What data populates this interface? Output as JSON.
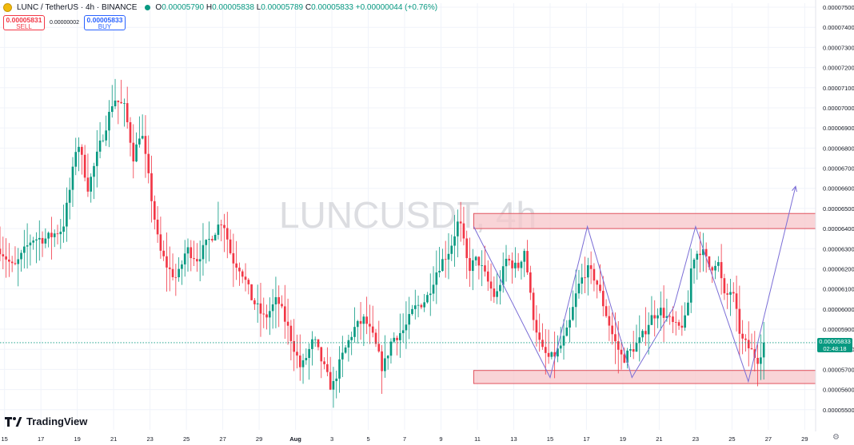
{
  "header": {
    "symbol": "LUNC / TetherUS · 4h · BINANCE",
    "open_k": "O",
    "open": "0.00005790",
    "high_k": "H",
    "high": "0.00005838",
    "low_k": "L",
    "low": "0.00005789",
    "close_k": "C",
    "close": "0.00005833",
    "change": "+0.00000044 (+0.76%)",
    "icon": "lunc-coin-icon"
  },
  "trade": {
    "sell_price": "0.00005831",
    "sell_label": "SELL",
    "spread": "0.00000002",
    "buy_price": "0.00005833",
    "buy_label": "BUY"
  },
  "watermark": "LUNCUSDT, 4h",
  "brand": "TradingView",
  "last_price": {
    "value": "0.00005833",
    "countdown": "02:48:18"
  },
  "colors": {
    "up": "#089981",
    "down": "#f23645",
    "zone_fill": "#f7c5c9",
    "zone_stroke": "#e0525d",
    "pattern": "#7b6ed6"
  },
  "chart_data": {
    "type": "candlestick",
    "y_range": [
      5.4e-05,
      7.52e-05
    ],
    "y_ticks": [
      "0.00007500",
      "0.00007400",
      "0.00007300",
      "0.00007200",
      "0.00007100",
      "0.00007000",
      "0.00006900",
      "0.00006800",
      "0.00006700",
      "0.00006600",
      "0.00006500",
      "0.00006400",
      "0.00006300",
      "0.00006200",
      "0.00006100",
      "0.00006000",
      "0.00005900",
      "0.00005800",
      "0.00005700",
      "0.00005600",
      "0.00005500"
    ],
    "x_range_days": [
      14.75,
      29.5
    ],
    "x_ticks": [
      {
        "d": 15,
        "l": "15"
      },
      {
        "d": 17,
        "l": "17"
      },
      {
        "d": 19,
        "l": "19"
      },
      {
        "d": 21,
        "l": "21"
      },
      {
        "d": 23,
        "l": "23"
      },
      {
        "d": 25,
        "l": "25"
      },
      {
        "d": 27,
        "l": "27"
      },
      {
        "d": 29,
        "l": "29"
      },
      {
        "d": 31,
        "l": "Aug"
      },
      {
        "d": 33,
        "l": "3"
      },
      {
        "d": 35,
        "l": "5"
      },
      {
        "d": 37,
        "l": "7"
      },
      {
        "d": 39,
        "l": "9"
      },
      {
        "d": 41,
        "l": "11"
      },
      {
        "d": 43,
        "l": "13"
      },
      {
        "d": 45,
        "l": "15"
      },
      {
        "d": 47,
        "l": "17"
      },
      {
        "d": 49,
        "l": "19"
      },
      {
        "d": 51,
        "l": "21"
      },
      {
        "d": 53,
        "l": "23"
      },
      {
        "d": 55,
        "l": "25"
      },
      {
        "d": 57,
        "l": "27"
      },
      {
        "d": 59,
        "l": "29"
      }
    ],
    "price_path": [
      [
        14.75,
        6.3
      ],
      [
        15.5,
        6.2
      ],
      [
        16.5,
        6.35
      ],
      [
        17.3,
        6.35
      ],
      [
        18.2,
        6.4
      ],
      [
        18.7,
        6.65
      ],
      [
        19.0,
        6.85
      ],
      [
        19.6,
        6.6
      ],
      [
        20.2,
        6.8
      ],
      [
        20.7,
        6.95
      ],
      [
        21.0,
        7.05
      ],
      [
        21.6,
        7.0
      ],
      [
        22.1,
        6.75
      ],
      [
        22.5,
        6.9
      ],
      [
        23.0,
        6.6
      ],
      [
        23.5,
        6.3
      ],
      [
        24.0,
        6.2
      ],
      [
        24.5,
        6.15
      ],
      [
        25.0,
        6.3
      ],
      [
        25.6,
        6.25
      ],
      [
        26.3,
        6.35
      ],
      [
        27.0,
        6.45
      ],
      [
        27.5,
        6.25
      ],
      [
        28.0,
        6.2
      ],
      [
        28.6,
        6.05
      ],
      [
        29.3,
        5.95
      ],
      [
        30.0,
        6.05
      ],
      [
        30.6,
        5.9
      ],
      [
        31.3,
        5.7
      ],
      [
        32.0,
        5.85
      ],
      [
        32.6,
        5.7
      ],
      [
        33.0,
        5.6
      ],
      [
        33.5,
        5.75
      ],
      [
        34.2,
        5.9
      ],
      [
        34.8,
        5.95
      ],
      [
        35.3,
        5.85
      ],
      [
        35.8,
        5.7
      ],
      [
        36.3,
        5.85
      ],
      [
        37.0,
        5.9
      ],
      [
        37.5,
        6.0
      ],
      [
        38.2,
        6.05
      ],
      [
        38.8,
        6.2
      ],
      [
        39.5,
        6.3
      ],
      [
        40.0,
        6.45
      ],
      [
        40.5,
        6.2
      ],
      [
        41.0,
        6.25
      ],
      [
        41.5,
        6.15
      ],
      [
        42.0,
        6.05
      ],
      [
        42.6,
        6.25
      ],
      [
        43.2,
        6.2
      ],
      [
        43.6,
        6.3
      ],
      [
        44.0,
        6.0
      ],
      [
        44.5,
        5.8
      ],
      [
        45.0,
        5.75
      ],
      [
        45.5,
        5.8
      ],
      [
        46.0,
        5.9
      ],
      [
        46.5,
        6.1
      ],
      [
        47.0,
        6.2
      ],
      [
        47.5,
        6.15
      ],
      [
        48.0,
        6.0
      ],
      [
        48.5,
        5.85
      ],
      [
        49.0,
        5.75
      ],
      [
        49.5,
        5.8
      ],
      [
        50.0,
        5.85
      ],
      [
        50.5,
        5.95
      ],
      [
        51.0,
        6.0
      ],
      [
        51.5,
        5.95
      ],
      [
        52.0,
        5.9
      ],
      [
        52.5,
        5.95
      ],
      [
        52.8,
        6.25
      ],
      [
        53.3,
        6.3
      ],
      [
        53.8,
        6.2
      ],
      [
        54.2,
        6.25
      ],
      [
        54.6,
        6.05
      ],
      [
        55.0,
        6.1
      ],
      [
        55.5,
        5.85
      ],
      [
        56.0,
        5.8
      ],
      [
        56.4,
        5.75
      ],
      [
        56.8,
        5.83
      ]
    ],
    "zones": [
      {
        "name": "resistance",
        "x0": 40.8,
        "x1": 59.9,
        "y0": 6.4e-05,
        "y1": 6.475e-05
      },
      {
        "name": "support",
        "x0": 40.8,
        "x1": 59.9,
        "y0": 5.63e-05,
        "y1": 5.695e-05
      }
    ],
    "pattern_path": [
      [
        40.8,
        6.41e-05
      ],
      [
        45.0,
        5.66e-05
      ],
      [
        47.05,
        6.41e-05
      ],
      [
        49.5,
        5.66e-05
      ],
      [
        51.8,
        6.01e-05
      ],
      [
        53.0,
        6.41e-05
      ],
      [
        55.9,
        5.64e-05
      ],
      [
        58.5,
        6.61e-05
      ]
    ],
    "current_price": 5.833e-05
  }
}
